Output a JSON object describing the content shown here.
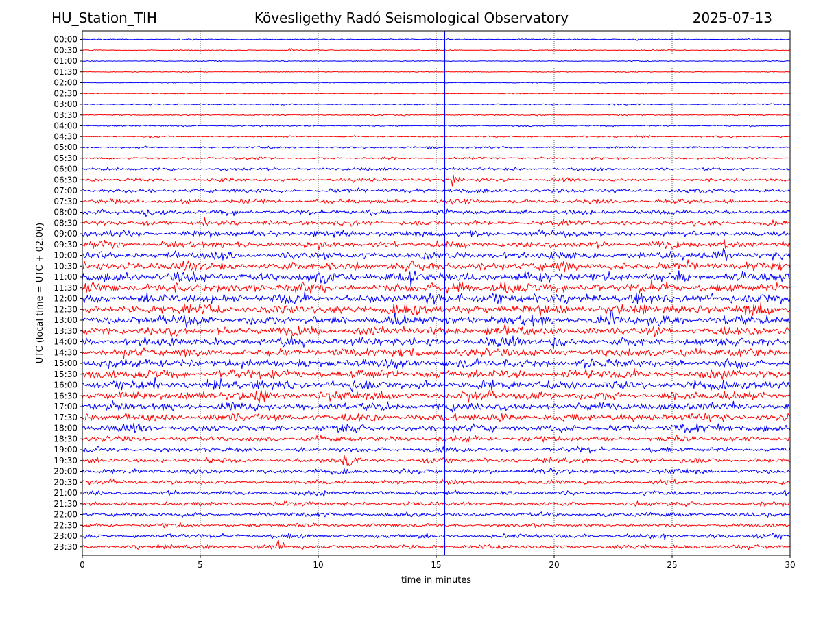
{
  "header": {
    "station": "HU_Station_TIH",
    "title": "Kövesligethy Radó Seismological Observatory",
    "date": "2025-07-13"
  },
  "chart_data": {
    "type": "line",
    "subtype": "helicorder",
    "xlabel": "time in minutes",
    "ylabel": "UTC (local time = UTC + 02:00)",
    "xlim": [
      0,
      30
    ],
    "x_ticks": [
      0,
      5,
      10,
      15,
      20,
      25,
      30
    ],
    "x_grid": "dotted vertical lines at 5, 10, 15, 20, 25",
    "y_grid": false,
    "colors": {
      "even_rows": "#0000ff",
      "odd_rows": "#ff0000"
    },
    "rows": [
      {
        "label": "00:00",
        "noise": 0.1,
        "events": [
          {
            "t": 22.5,
            "amp": 0.35
          },
          {
            "t": 23.5,
            "amp": 0.35
          }
        ]
      },
      {
        "label": "00:30",
        "noise": 0.1,
        "events": [
          {
            "t": 8.8,
            "amp": 0.5
          }
        ]
      },
      {
        "label": "01:00",
        "noise": 0.08,
        "events": []
      },
      {
        "label": "01:30",
        "noise": 0.08,
        "events": []
      },
      {
        "label": "02:00",
        "noise": 0.08,
        "events": []
      },
      {
        "label": "02:30",
        "noise": 0.08,
        "events": []
      },
      {
        "label": "03:00",
        "noise": 0.12,
        "events": []
      },
      {
        "label": "03:30",
        "noise": 0.12,
        "events": []
      },
      {
        "label": "04:00",
        "noise": 0.14,
        "events": []
      },
      {
        "label": "04:30",
        "noise": 0.15,
        "events": [
          {
            "t": 2.9,
            "amp": 0.6
          }
        ]
      },
      {
        "label": "05:00",
        "noise": 0.18,
        "events": [
          {
            "t": 14.7,
            "amp": 0.5
          }
        ]
      },
      {
        "label": "05:30",
        "noise": 0.2,
        "events": []
      },
      {
        "label": "06:00",
        "noise": 0.28,
        "events": []
      },
      {
        "label": "06:30",
        "noise": 0.3,
        "events": [
          {
            "t": 15.7,
            "amp": 1.0
          }
        ]
      },
      {
        "label": "07:00",
        "noise": 0.38,
        "events": []
      },
      {
        "label": "07:30",
        "noise": 0.4,
        "events": [
          {
            "t": 4.3,
            "amp": 0.6
          }
        ]
      },
      {
        "label": "08:00",
        "noise": 0.45,
        "events": [
          {
            "t": 2.7,
            "amp": 0.9
          }
        ]
      },
      {
        "label": "08:30",
        "noise": 0.45,
        "events": [
          {
            "t": 5.2,
            "amp": 0.8
          }
        ]
      },
      {
        "label": "09:00",
        "noise": 0.55,
        "events": [
          {
            "t": 16.5,
            "amp": 1.0
          }
        ]
      },
      {
        "label": "09:30",
        "noise": 0.6,
        "events": [
          {
            "t": 1.3,
            "amp": 1.2
          },
          {
            "t": 27.2,
            "amp": 1.2
          }
        ]
      },
      {
        "label": "10:00",
        "noise": 0.7,
        "events": [
          {
            "t": 27.1,
            "amp": 2.0
          }
        ]
      },
      {
        "label": "10:30",
        "noise": 0.85,
        "events": []
      },
      {
        "label": "11:00",
        "noise": 0.9,
        "events": [
          {
            "t": 14.0,
            "amp": 1.4
          },
          {
            "t": 19.8,
            "amp": 1.0
          }
        ]
      },
      {
        "label": "11:30",
        "noise": 0.9,
        "events": [
          {
            "t": 16.0,
            "amp": 1.5
          },
          {
            "t": 17.8,
            "amp": 1.4
          }
        ]
      },
      {
        "label": "12:00",
        "noise": 0.9,
        "events": [
          {
            "t": 16.0,
            "amp": 1.6
          }
        ]
      },
      {
        "label": "12:30",
        "noise": 0.9,
        "events": []
      },
      {
        "label": "13:00",
        "noise": 0.85,
        "events": [
          {
            "t": 22.4,
            "amp": 2.0
          },
          {
            "t": 24.5,
            "amp": 1.2
          }
        ]
      },
      {
        "label": "13:30",
        "noise": 0.8,
        "events": [
          {
            "t": 17.2,
            "amp": 1.6
          }
        ]
      },
      {
        "label": "14:00",
        "noise": 0.8,
        "events": [
          {
            "t": 19.9,
            "amp": 1.8
          }
        ]
      },
      {
        "label": "14:30",
        "noise": 0.8,
        "events": []
      },
      {
        "label": "15:00",
        "noise": 0.85,
        "events": [
          {
            "t": 12.2,
            "amp": 1.4
          },
          {
            "t": 0.8,
            "amp": 1.0
          }
        ]
      },
      {
        "label": "15:30",
        "noise": 0.85,
        "events": [
          {
            "t": 8.0,
            "amp": 1.6
          }
        ]
      },
      {
        "label": "16:00",
        "noise": 0.85,
        "events": [
          {
            "t": 3.0,
            "amp": 1.0
          }
        ]
      },
      {
        "label": "16:30",
        "noise": 0.8,
        "events": [
          {
            "t": 7.5,
            "amp": 1.5
          }
        ]
      },
      {
        "label": "17:00",
        "noise": 0.75,
        "events": []
      },
      {
        "label": "17:30",
        "noise": 0.7,
        "events": [
          {
            "t": 16.5,
            "amp": 1.0
          },
          {
            "t": 7.4,
            "amp": 1.0
          }
        ]
      },
      {
        "label": "18:00",
        "noise": 0.65,
        "events": [
          {
            "t": 27.0,
            "amp": 1.0
          }
        ]
      },
      {
        "label": "18:30",
        "noise": 0.5,
        "events": []
      },
      {
        "label": "19:00",
        "noise": 0.45,
        "events": [
          {
            "t": 11.1,
            "amp": 1.2
          }
        ]
      },
      {
        "label": "19:30",
        "noise": 0.45,
        "events": [
          {
            "t": 11.1,
            "amp": 1.6
          },
          {
            "t": 11.3,
            "amp": 1.4
          }
        ]
      },
      {
        "label": "20:00",
        "noise": 0.45,
        "events": []
      },
      {
        "label": "20:30",
        "noise": 0.4,
        "events": []
      },
      {
        "label": "21:00",
        "noise": 0.4,
        "events": [
          {
            "t": 10.1,
            "amp": 0.7
          }
        ]
      },
      {
        "label": "21:30",
        "noise": 0.4,
        "events": []
      },
      {
        "label": "22:00",
        "noise": 0.38,
        "events": []
      },
      {
        "label": "22:30",
        "noise": 0.32,
        "events": []
      },
      {
        "label": "23:00",
        "noise": 0.4,
        "events": [
          {
            "t": 24.7,
            "amp": 0.7
          }
        ]
      },
      {
        "label": "23:30",
        "noise": 0.4,
        "events": [
          {
            "t": 8.3,
            "amp": 0.8
          }
        ]
      }
    ],
    "annotations": [
      {
        "type": "vertical_line",
        "x": 15.35,
        "color": "#0000ff"
      }
    ]
  }
}
